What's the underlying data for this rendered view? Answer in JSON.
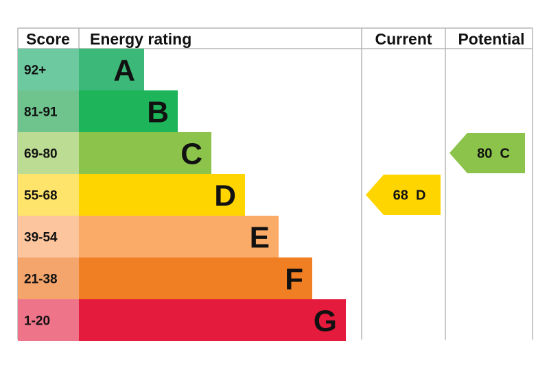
{
  "chart_data": {
    "type": "bar",
    "headers": {
      "score": "Score",
      "rating": "Energy rating",
      "current": "Current",
      "potential": "Potential"
    },
    "bands": [
      {
        "score": "92+",
        "letter": "A",
        "color": "#3cb878",
        "score_color": "#6cc9a0"
      },
      {
        "score": "81-91",
        "letter": "B",
        "color": "#1db45a",
        "score_color": "#6fc48e"
      },
      {
        "score": "69-80",
        "letter": "C",
        "color": "#8cc34a",
        "score_color": "#bcdb93"
      },
      {
        "score": "55-68",
        "letter": "D",
        "color": "#ffd500",
        "score_color": "#ffe46b"
      },
      {
        "score": "39-54",
        "letter": "E",
        "color": "#fbab68",
        "score_color": "#fcc59d"
      },
      {
        "score": "21-38",
        "letter": "F",
        "color": "#ef7f22",
        "score_color": "#f4a56b"
      },
      {
        "score": "1-20",
        "letter": "G",
        "color": "#e51b3d",
        "score_color": "#ee7489"
      }
    ],
    "current": {
      "value": 68,
      "letter": "D",
      "text": "68  D",
      "color": "#ffd500"
    },
    "potential": {
      "value": 80,
      "letter": "C",
      "text": "80  C",
      "color": "#8cc34a"
    }
  }
}
